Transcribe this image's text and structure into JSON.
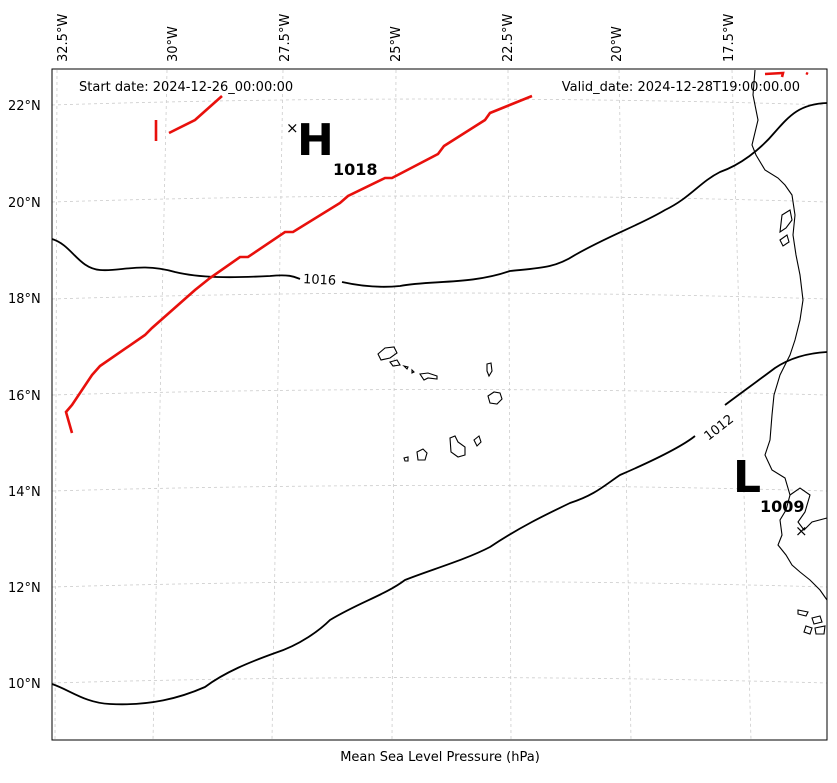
{
  "header": {
    "start_date": "Start date: 2024-12-26_00:00:00",
    "valid_date": "Valid_date: 2024-12-28T19:00:00.00"
  },
  "caption": "Mean Sea Level Pressure (hPa)",
  "axes": {
    "lon_ticks": [
      "32.5°W",
      "30°W",
      "27.5°W",
      "25°W",
      "22.5°W",
      "20°W",
      "17.5°W"
    ],
    "lat_ticks": [
      "22°N",
      "20°N",
      "18°N",
      "16°N",
      "14°N",
      "12°N",
      "10°N"
    ]
  },
  "isobars": [
    {
      "value": 1016,
      "label": "1016"
    },
    {
      "value": 1012,
      "label": "1012"
    }
  ],
  "pressure_centers": [
    {
      "type": "high",
      "letter": "H",
      "value": "1018"
    },
    {
      "type": "low",
      "letter": "L",
      "value": "1009"
    }
  ],
  "colors": {
    "front": "#e8100c",
    "isobar": "#000000",
    "grid": "#cccccc",
    "coast": "#000000"
  }
}
